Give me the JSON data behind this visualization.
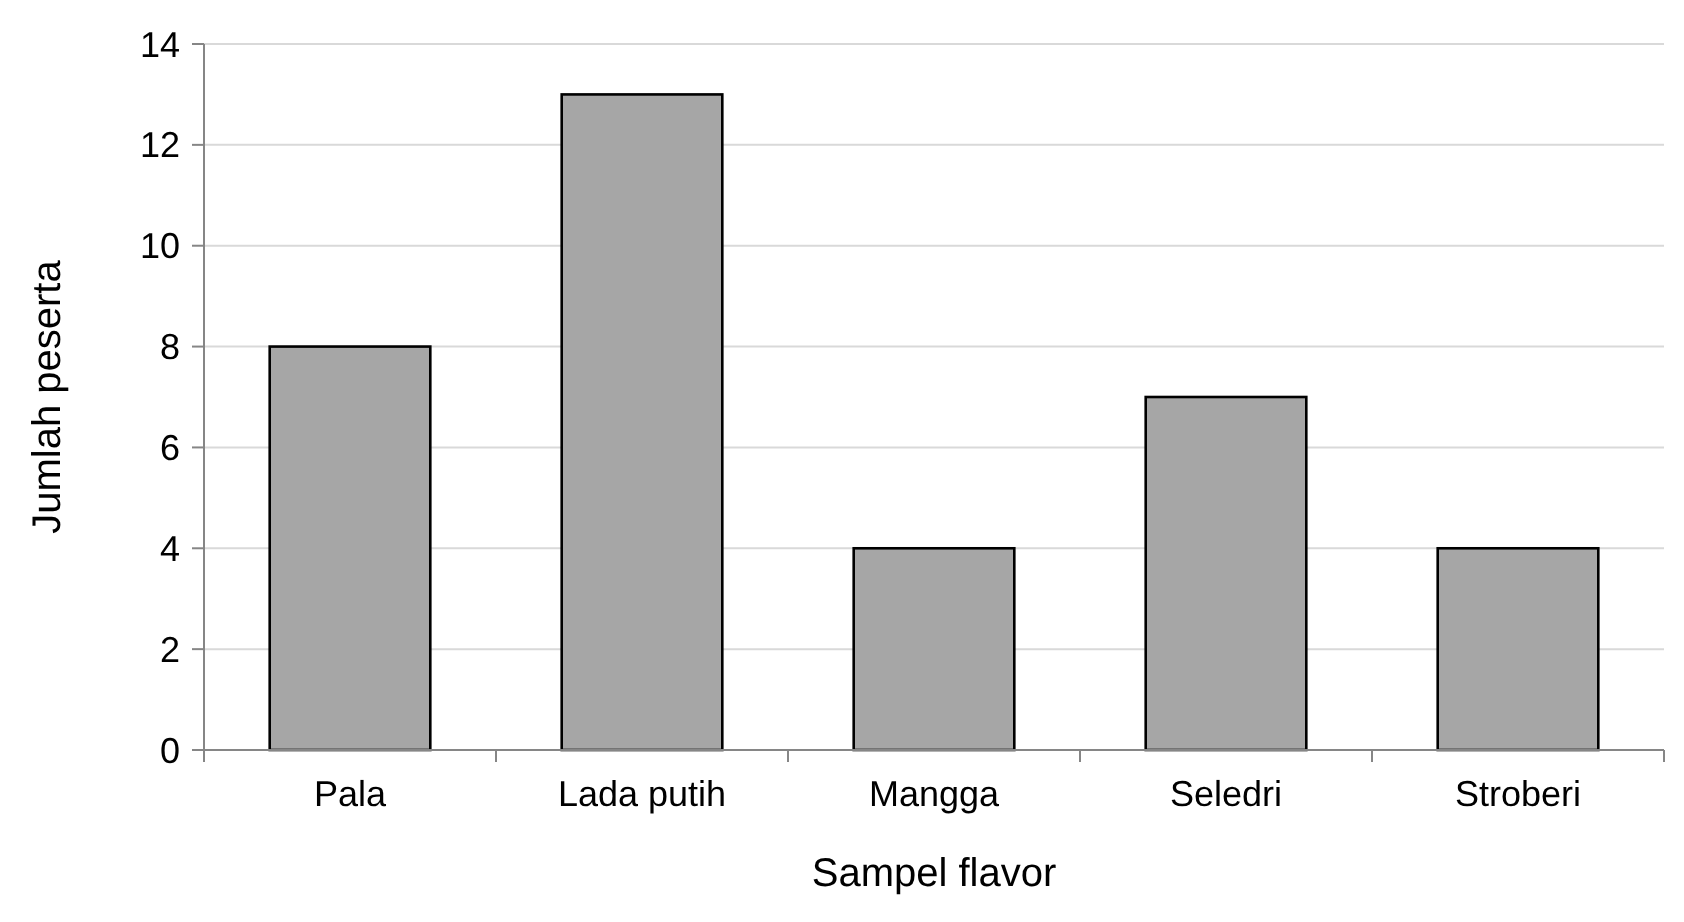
{
  "chart_data": {
    "type": "bar",
    "xlabel": "Sampel flavor",
    "ylabel": "Jumlah peserta",
    "categories": [
      "Pala",
      "Lada putih",
      "Mangga",
      "Seledri",
      "Stroberi"
    ],
    "values": [
      8,
      13,
      4,
      7,
      4
    ],
    "color": "#a6a6a6",
    "ylim": [
      0,
      14
    ],
    "yticks": [
      0,
      2,
      4,
      6,
      8,
      10,
      12,
      14
    ],
    "grid": "y"
  }
}
